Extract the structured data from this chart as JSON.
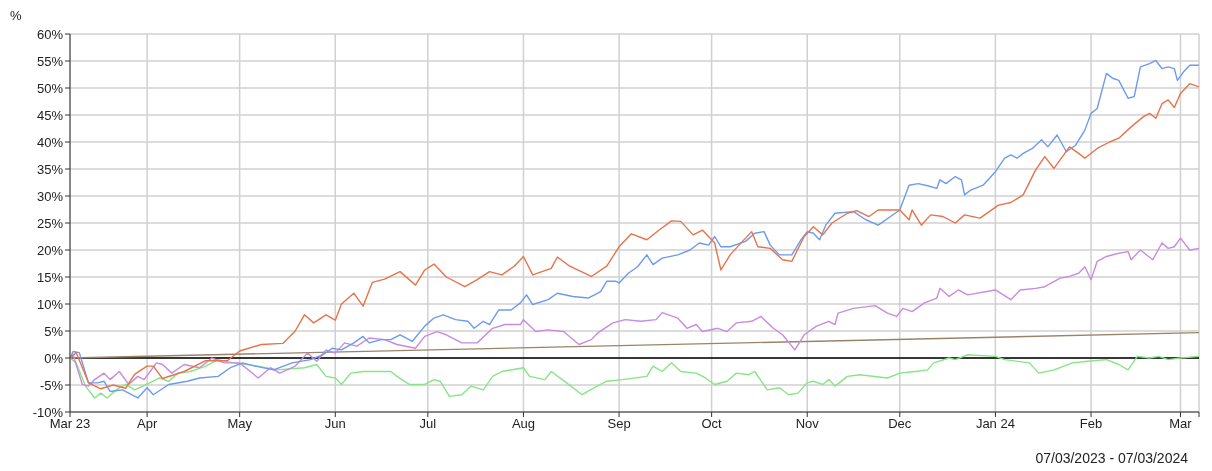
{
  "chart_data": {
    "type": "line",
    "ylabel": "%",
    "annotations": [
      "07/03/2023 - 07/03/2024"
    ],
    "grid": true,
    "marker": "none",
    "xlim": [
      "2023-03-07",
      "2024-03-07"
    ],
    "xticks": [
      {
        "value": "2023-03-07",
        "label": "Mar 23"
      },
      {
        "value": "2023-04-01",
        "label": "Apr"
      },
      {
        "value": "2023-05-01",
        "label": "May"
      },
      {
        "value": "2023-06-01",
        "label": "Jun"
      },
      {
        "value": "2023-07-01",
        "label": "Jul"
      },
      {
        "value": "2023-08-01",
        "label": "Aug"
      },
      {
        "value": "2023-09-01",
        "label": "Sep"
      },
      {
        "value": "2023-10-01",
        "label": "Oct"
      },
      {
        "value": "2023-11-01",
        "label": "Nov"
      },
      {
        "value": "2023-12-01",
        "label": "Dec"
      },
      {
        "value": "2024-01-01",
        "label": "Jan 24"
      },
      {
        "value": "2024-02-01",
        "label": "Feb"
      },
      {
        "value": "2024-03-01",
        "label": "Mar"
      },
      {
        "value": "2024-03-07",
        "label": null
      }
    ],
    "ylim": [
      -10,
      60
    ],
    "yticks": [
      {
        "value": -10,
        "label": "-10%"
      },
      {
        "value": -5,
        "label": "-5%"
      },
      {
        "value": 0,
        "label": "0%"
      },
      {
        "value": 5,
        "label": "5%"
      },
      {
        "value": 10,
        "label": "10%"
      },
      {
        "value": 15,
        "label": "15%"
      },
      {
        "value": 20,
        "label": "20%"
      },
      {
        "value": 25,
        "label": "25%"
      },
      {
        "value": 30,
        "label": "30%"
      },
      {
        "value": 35,
        "label": "35%"
      },
      {
        "value": 40,
        "label": "40%"
      },
      {
        "value": 45,
        "label": "45%"
      },
      {
        "value": 50,
        "label": "50%"
      },
      {
        "value": 55,
        "label": "55%"
      },
      {
        "value": 60,
        "label": "60%"
      }
    ],
    "ref_lines": [
      {
        "axis": "y",
        "value": 0,
        "color": "#000000"
      }
    ],
    "series": [
      {
        "color": "#9a8468",
        "x": [
          "2023-03-07",
          "2024-03-07"
        ],
        "values": [
          0,
          4.7
        ]
      },
      {
        "color": "#86e586",
        "x": [
          "2023-03-07",
          "2023-03-09",
          "2023-03-12",
          "2023-03-15",
          "2023-03-17",
          "2023-03-19",
          "2023-03-22",
          "2023-03-25",
          "2023-03-28",
          "2023-04-03",
          "2023-04-05",
          "2023-04-08",
          "2023-04-11",
          "2023-04-15",
          "2023-04-20",
          "2023-04-24",
          "2023-04-29",
          "2023-05-07",
          "2023-05-13",
          "2023-05-22",
          "2023-05-26",
          "2023-05-29",
          "2023-06-01",
          "2023-06-03",
          "2023-06-06",
          "2023-06-10",
          "2023-06-19",
          "2023-06-21",
          "2023-06-25",
          "2023-06-30",
          "2023-07-03",
          "2023-07-05",
          "2023-07-08",
          "2023-07-12",
          "2023-07-15",
          "2023-07-19",
          "2023-07-22",
          "2023-07-25",
          "2023-08-01",
          "2023-08-03",
          "2023-08-08",
          "2023-08-10",
          "2023-08-15",
          "2023-08-20",
          "2023-08-24",
          "2023-08-28",
          "2023-09-02",
          "2023-09-10",
          "2023-09-12",
          "2023-09-15",
          "2023-09-18",
          "2023-09-21",
          "2023-09-26",
          "2023-09-29",
          "2023-10-02",
          "2023-10-06",
          "2023-10-09",
          "2023-10-13",
          "2023-10-15",
          "2023-10-19",
          "2023-10-23",
          "2023-10-26",
          "2023-10-29",
          "2023-11-01",
          "2023-11-03",
          "2023-11-06",
          "2023-11-08",
          "2023-11-10",
          "2023-11-14",
          "2023-11-18",
          "2023-11-27",
          "2023-12-01",
          "2023-12-06",
          "2023-12-10",
          "2023-12-12",
          "2023-12-17",
          "2023-12-19",
          "2023-12-23",
          "2024-01-01",
          "2024-01-04",
          "2024-01-12",
          "2024-01-15",
          "2024-01-20",
          "2024-01-26",
          "2024-01-31",
          "2024-02-06",
          "2024-02-10",
          "2024-02-13",
          "2024-02-16",
          "2024-02-20",
          "2024-02-23",
          "2024-02-26",
          "2024-03-01",
          "2024-03-07"
        ],
        "values": [
          0,
          -0.9,
          -5.2,
          -7.4,
          -6.5,
          -7.4,
          -5.9,
          -4.9,
          -5.9,
          -4.3,
          -3.7,
          -4.3,
          -2.8,
          -2.5,
          -1.5,
          -0.3,
          -0.9,
          -1.5,
          -2.2,
          -1.8,
          -1.2,
          -3.4,
          -3.7,
          -4.9,
          -2.8,
          -2.5,
          -2.5,
          -3.4,
          -4.9,
          -4.9,
          -4,
          -4.3,
          -7.1,
          -6.8,
          -5.2,
          -5.9,
          -3.4,
          -2.5,
          -1.8,
          -3.4,
          -4,
          -2.5,
          -4.6,
          -6.8,
          -5.5,
          -4.3,
          -4,
          -3.4,
          -1.5,
          -2.5,
          -0.9,
          -2.5,
          -2.8,
          -3.7,
          -4.9,
          -4.3,
          -2.8,
          -3.1,
          -2.5,
          -5.9,
          -5.5,
          -6.8,
          -6.5,
          -4.6,
          -4.3,
          -4.9,
          -4,
          -5.2,
          -3.4,
          -3.1,
          -3.7,
          -2.8,
          -2.5,
          -2.2,
          -0.9,
          0,
          -0.3,
          0.6,
          0.3,
          -0.3,
          -0.9,
          -2.8,
          -2.2,
          -0.9,
          -0.6,
          -0.3,
          -1.2,
          -2.2,
          0.3,
          0,
          0.3,
          -0.3,
          0,
          0.3
        ]
      },
      {
        "color": "#c98ae0",
        "x": [
          "2023-03-07",
          "2023-03-08",
          "2023-03-11",
          "2023-03-13",
          "2023-03-15",
          "2023-03-18",
          "2023-03-20",
          "2023-03-23",
          "2023-03-26",
          "2023-03-29",
          "2023-03-31",
          "2023-04-02",
          "2023-04-04",
          "2023-04-06",
          "2023-04-09",
          "2023-04-13",
          "2023-04-18",
          "2023-04-22",
          "2023-04-26",
          "2023-05-01",
          "2023-05-07",
          "2023-05-11",
          "2023-05-14",
          "2023-05-19",
          "2023-05-23",
          "2023-05-26",
          "2023-05-29",
          "2023-06-01",
          "2023-06-04",
          "2023-06-08",
          "2023-06-12",
          "2023-06-17",
          "2023-06-21",
          "2023-06-27",
          "2023-06-30",
          "2023-07-04",
          "2023-07-07",
          "2023-07-12",
          "2023-07-17",
          "2023-07-22",
          "2023-07-26",
          "2023-07-31",
          "2023-08-01",
          "2023-08-05",
          "2023-08-09",
          "2023-08-14",
          "2023-08-19",
          "2023-08-23",
          "2023-08-25",
          "2023-08-30",
          "2023-09-03",
          "2023-09-08",
          "2023-09-13",
          "2023-09-15",
          "2023-09-20",
          "2023-09-23",
          "2023-09-26",
          "2023-09-28",
          "2023-10-03",
          "2023-10-06",
          "2023-10-09",
          "2023-10-14",
          "2023-10-17",
          "2023-10-21",
          "2023-10-24",
          "2023-10-28",
          "2023-10-31",
          "2023-11-04",
          "2023-11-08",
          "2023-11-10",
          "2023-11-11",
          "2023-11-16",
          "2023-11-23",
          "2023-11-27",
          "2023-11-30",
          "2023-12-02",
          "2023-12-05",
          "2023-12-09",
          "2023-12-13",
          "2023-12-14",
          "2023-12-17",
          "2023-12-20",
          "2023-12-23",
          "2024-01-01",
          "2024-01-06",
          "2024-01-09",
          "2024-01-14",
          "2024-01-17",
          "2024-01-22",
          "2024-01-25",
          "2024-01-28",
          "2024-01-30",
          "2024-02-01",
          "2024-02-03",
          "2024-02-06",
          "2024-02-10",
          "2024-02-13",
          "2024-02-14",
          "2024-02-17",
          "2024-02-21",
          "2024-02-24",
          "2024-02-26",
          "2024-02-28",
          "2024-03-01",
          "2024-03-04",
          "2024-03-07"
        ],
        "values": [
          0,
          0.6,
          -4.9,
          -5.2,
          -4,
          -2.8,
          -4,
          -2.5,
          -4.9,
          -3.4,
          -4,
          -2.5,
          -0.9,
          -1.2,
          -2.8,
          -1.2,
          -1.8,
          0,
          -0.9,
          -0.9,
          -3.7,
          -1.8,
          -2.8,
          -1.5,
          0.9,
          -0.6,
          1.5,
          0.9,
          2.8,
          2.2,
          3.7,
          3.4,
          2.5,
          1.8,
          4,
          4.9,
          4.3,
          2.8,
          2.8,
          5.5,
          6.2,
          6.2,
          7.1,
          4.9,
          5.2,
          4.9,
          2.5,
          3.4,
          4.6,
          6.5,
          7.1,
          6.8,
          7.1,
          8.4,
          7.4,
          5.5,
          6.2,
          4.9,
          5.5,
          4.9,
          6.5,
          6.8,
          7.7,
          5.5,
          4.3,
          1.5,
          4.3,
          5.9,
          6.8,
          6.2,
          8.3,
          9.2,
          9.7,
          8.3,
          7.7,
          9.2,
          8.6,
          10.2,
          11.1,
          12.9,
          11.4,
          12.6,
          11.7,
          12.6,
          10.8,
          12.6,
          12.9,
          13.2,
          14.8,
          15.1,
          15.7,
          16.9,
          14.5,
          17.9,
          18.8,
          19.4,
          19.7,
          18.2,
          20,
          18.2,
          21.3,
          20.3,
          20.6,
          22.2,
          20,
          20.3
        ]
      },
      {
        "color": "#6d9af0",
        "x": [
          "2023-03-07",
          "2023-03-08",
          "2023-03-10",
          "2023-03-13",
          "2023-03-16",
          "2023-03-18",
          "2023-03-20",
          "2023-03-24",
          "2023-03-29",
          "2023-04-01",
          "2023-04-03",
          "2023-04-08",
          "2023-04-14",
          "2023-04-18",
          "2023-04-24",
          "2023-04-28",
          "2023-05-02",
          "2023-05-06",
          "2023-05-12",
          "2023-05-18",
          "2023-05-24",
          "2023-05-28",
          "2023-05-31",
          "2023-06-03",
          "2023-06-07",
          "2023-06-10",
          "2023-06-12",
          "2023-06-16",
          "2023-06-19",
          "2023-06-22",
          "2023-06-26",
          "2023-06-30",
          "2023-07-03",
          "2023-07-06",
          "2023-07-10",
          "2023-07-14",
          "2023-07-16",
          "2023-07-19",
          "2023-07-21",
          "2023-07-24",
          "2023-07-28",
          "2023-07-31",
          "2023-08-02",
          "2023-08-04",
          "2023-08-09",
          "2023-08-12",
          "2023-08-17",
          "2023-08-22",
          "2023-08-26",
          "2023-08-28",
          "2023-08-31",
          "2023-09-01",
          "2023-09-04",
          "2023-09-07",
          "2023-09-10",
          "2023-09-12",
          "2023-09-15",
          "2023-09-20",
          "2023-09-24",
          "2023-09-27",
          "2023-09-30",
          "2023-10-02",
          "2023-10-04",
          "2023-10-07",
          "2023-10-12",
          "2023-10-15",
          "2023-10-18",
          "2023-10-20",
          "2023-10-23",
          "2023-10-27",
          "2023-10-30",
          "2023-11-01",
          "2023-11-03",
          "2023-11-05",
          "2023-11-07",
          "2023-11-10",
          "2023-11-16",
          "2023-11-20",
          "2023-11-24",
          "2023-11-28",
          "2023-12-01",
          "2023-12-04",
          "2023-12-07",
          "2023-12-10",
          "2023-12-13",
          "2023-12-14",
          "2023-12-16",
          "2023-12-19",
          "2023-12-21",
          "2023-12-22",
          "2023-12-24",
          "2023-12-28",
          "2024-01-01",
          "2024-01-04",
          "2024-01-06",
          "2024-01-08",
          "2024-01-10",
          "2024-01-13",
          "2024-01-16",
          "2024-01-18",
          "2024-01-21",
          "2024-01-24",
          "2024-01-27",
          "2024-01-30",
          "2024-02-01",
          "2024-02-03",
          "2024-02-06",
          "2024-02-08",
          "2024-02-10",
          "2024-02-13",
          "2024-02-15",
          "2024-02-17",
          "2024-02-20",
          "2024-02-22",
          "2024-02-24",
          "2024-02-26",
          "2024-02-28",
          "2024-02-29",
          "2024-03-02",
          "2024-03-04",
          "2024-03-07"
        ],
        "values": [
          0,
          1.2,
          1,
          -4.6,
          -4.6,
          -4.3,
          -6.2,
          -5.9,
          -7.4,
          -5.5,
          -6.8,
          -4.9,
          -4.3,
          -3.7,
          -3.4,
          -1.8,
          -0.9,
          -1.5,
          -2.2,
          -0.9,
          -0.3,
          0.6,
          1.8,
          1.5,
          2.8,
          4,
          2.8,
          3.4,
          3.4,
          4.3,
          3.1,
          5.9,
          7.4,
          8,
          7.1,
          6.8,
          5.5,
          6.8,
          6.2,
          8.9,
          8.9,
          10.2,
          11.7,
          9.9,
          10.8,
          12,
          11.4,
          11.1,
          12.3,
          14.2,
          14.2,
          13.9,
          15.7,
          16.9,
          19.1,
          17.3,
          18.5,
          19.1,
          20,
          21.3,
          20.9,
          22.5,
          20.6,
          20.6,
          21.6,
          23.1,
          23.4,
          20.9,
          19.1,
          19.1,
          21.9,
          23.4,
          23.1,
          21.9,
          24.6,
          26.8,
          27.1,
          25.6,
          24.6,
          26.2,
          27.4,
          32,
          32.3,
          31.9,
          31.4,
          33,
          32.3,
          33.6,
          33,
          30.2,
          31.1,
          32,
          34.5,
          37,
          37.6,
          37,
          37.9,
          38.8,
          40.4,
          39.1,
          41.3,
          38.2,
          39.4,
          42.2,
          45.3,
          46.2,
          52.7,
          51.8,
          51.4,
          48.1,
          48.4,
          53.9,
          54.5,
          55.1,
          53.6,
          53.9,
          53.6,
          51.4,
          53,
          54.2,
          54.2
        ]
      },
      {
        "color": "#e8734a",
        "x": [
          "2023-03-07",
          "2023-03-09",
          "2023-03-13",
          "2023-03-17",
          "2023-03-21",
          "2023-03-25",
          "2023-03-28",
          "2023-04-01",
          "2023-04-03",
          "2023-04-06",
          "2023-04-13",
          "2023-04-20",
          "2023-04-27",
          "2023-05-01",
          "2023-05-08",
          "2023-05-15",
          "2023-05-19",
          "2023-05-22",
          "2023-05-25",
          "2023-05-29",
          "2023-06-01",
          "2023-06-03",
          "2023-06-07",
          "2023-06-10",
          "2023-06-13",
          "2023-06-17",
          "2023-06-22",
          "2023-06-27",
          "2023-06-30",
          "2023-07-03",
          "2023-07-07",
          "2023-07-13",
          "2023-07-17",
          "2023-07-21",
          "2023-07-25",
          "2023-07-29",
          "2023-08-01",
          "2023-08-04",
          "2023-08-10",
          "2023-08-12",
          "2023-08-16",
          "2023-08-23",
          "2023-08-28",
          "2023-09-01",
          "2023-09-05",
          "2023-09-10",
          "2023-09-14",
          "2023-09-18",
          "2023-09-21",
          "2023-09-25",
          "2023-09-28",
          "2023-10-02",
          "2023-10-04",
          "2023-10-07",
          "2023-10-11",
          "2023-10-14",
          "2023-10-16",
          "2023-10-20",
          "2023-10-24",
          "2023-10-27",
          "2023-10-31",
          "2023-11-03",
          "2023-11-06",
          "2023-11-09",
          "2023-11-14",
          "2023-11-17",
          "2023-11-21",
          "2023-11-24",
          "2023-12-01",
          "2023-12-04",
          "2023-12-05",
          "2023-12-08",
          "2023-12-11",
          "2023-12-15",
          "2023-12-19",
          "2023-12-22",
          "2023-12-27",
          "2024-01-02",
          "2024-01-06",
          "2024-01-10",
          "2024-01-14",
          "2024-01-17",
          "2024-01-20",
          "2024-01-25",
          "2024-01-28",
          "2024-01-30",
          "2024-02-03",
          "2024-02-07",
          "2024-02-10",
          "2024-02-14",
          "2024-02-18",
          "2024-02-20",
          "2024-02-22",
          "2024-02-24",
          "2024-02-26",
          "2024-02-28",
          "2024-03-01",
          "2024-03-04",
          "2024-03-07"
        ],
        "values": [
          0,
          1,
          -4.6,
          -5.7,
          -5,
          -5.6,
          -3,
          -1.5,
          -1.5,
          -3.8,
          -2.5,
          -0.5,
          -0.5,
          1.3,
          2.5,
          2.7,
          5,
          8,
          6.5,
          8,
          7,
          10,
          12,
          9.6,
          14,
          14.6,
          16,
          13.5,
          16.3,
          17.4,
          15,
          13.2,
          14.5,
          16,
          15.4,
          17,
          18.8,
          15.4,
          16.6,
          18.7,
          17,
          15.1,
          17,
          20.6,
          23,
          21.9,
          23.7,
          25.4,
          25.3,
          22.8,
          23.7,
          21.3,
          16.3,
          19.1,
          21.6,
          23.4,
          20.6,
          20.3,
          18.2,
          17.9,
          22.5,
          24.3,
          22.8,
          25,
          26.8,
          27.3,
          26.2,
          27.4,
          27.4,
          25.6,
          27.4,
          24.6,
          26.5,
          26.2,
          25,
          26.5,
          25.9,
          28.3,
          28.8,
          30.2,
          34.8,
          37.3,
          35.1,
          39.1,
          37.9,
          37,
          38.8,
          40,
          40.7,
          42.8,
          44.7,
          45.3,
          44.4,
          47.1,
          47.8,
          46.4,
          49,
          50.8,
          50.2
        ]
      }
    ]
  }
}
